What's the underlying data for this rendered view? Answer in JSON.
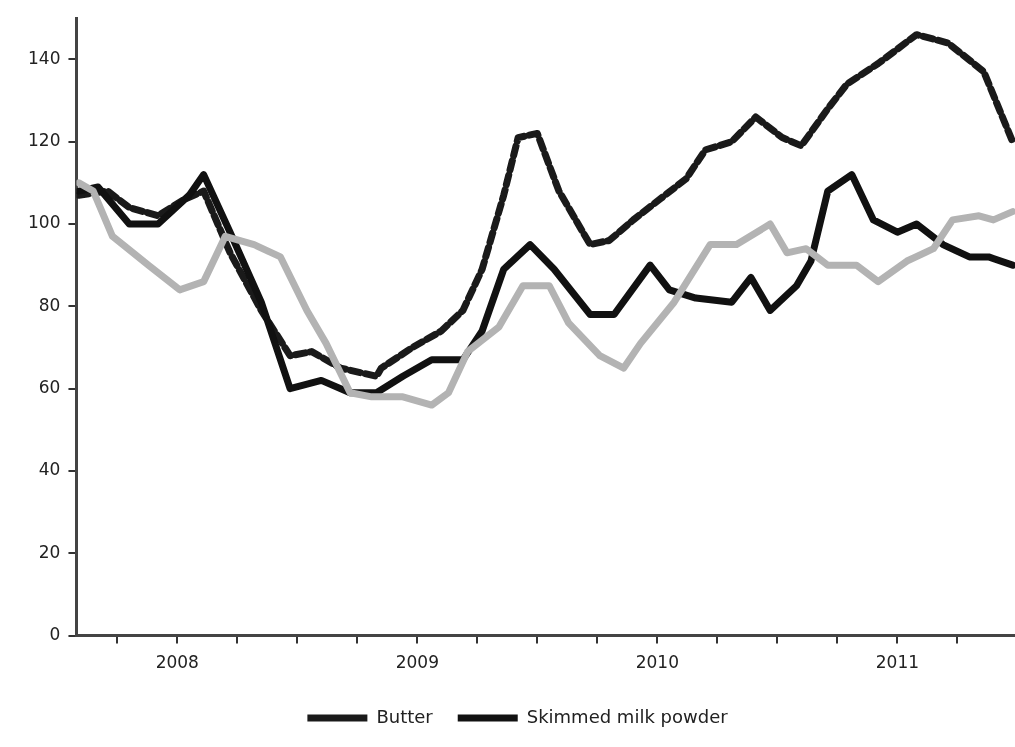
{
  "chart_data": {
    "type": "line",
    "legend": "bottom",
    "grid": false,
    "marker": "none",
    "xlim": [
      2008.08,
      2011.99
    ],
    "xticks": [
      {
        "value": 2008.25,
        "label": null
      },
      {
        "value": 2008.5,
        "label": "2008"
      },
      {
        "value": 2008.75,
        "label": null
      },
      {
        "value": 2009,
        "label": null
      },
      {
        "value": 2009.25,
        "label": null
      },
      {
        "value": 2009.5,
        "label": "2009"
      },
      {
        "value": 2009.75,
        "label": null
      },
      {
        "value": 2010,
        "label": null
      },
      {
        "value": 2010.25,
        "label": null
      },
      {
        "value": 2010.5,
        "label": "2010"
      },
      {
        "value": 2010.75,
        "label": null
      },
      {
        "value": 2011,
        "label": null
      },
      {
        "value": 2011.25,
        "label": null
      },
      {
        "value": 2011.5,
        "label": "2011"
      },
      {
        "value": 2011.75,
        "label": null
      }
    ],
    "ylim": [
      0,
      150
    ],
    "yticks": [
      0,
      20,
      40,
      60,
      80,
      100,
      120,
      140
    ],
    "series": [
      {
        "name": "Butter",
        "color": "#1a1a1a",
        "line_style": "dashed",
        "x": [
          2008.09,
          2008.21,
          2008.3,
          2008.42,
          2008.53,
          2008.61,
          2008.72,
          2008.85,
          2008.97,
          2009.06,
          2009.18,
          2009.33,
          2009.35,
          2009.48,
          2009.6,
          2009.69,
          2009.77,
          2009.86,
          2009.92,
          2010.0,
          2010.09,
          2010.22,
          2010.3,
          2010.4,
          2010.51,
          2010.62,
          2010.7,
          2010.81,
          2010.91,
          2011.02,
          2011.1,
          2011.21,
          2011.29,
          2011.42,
          2011.58,
          2011.71,
          2011.86,
          2011.98
        ],
        "values": [
          107,
          108,
          104,
          102,
          106,
          108,
          93,
          79,
          68,
          69,
          65,
          63,
          65,
          70,
          74,
          79,
          89,
          107,
          121,
          122,
          108,
          95,
          96,
          101,
          106,
          111,
          118,
          120,
          126,
          121,
          119,
          128,
          134,
          139,
          146,
          144,
          137,
          120
        ]
      },
      {
        "name": "Skimmed milk powder",
        "color": "#111111",
        "line_style": "solid",
        "x": [
          2008.09,
          2008.17,
          2008.3,
          2008.42,
          2008.55,
          2008.61,
          2008.72,
          2008.85,
          2008.97,
          2009.1,
          2009.22,
          2009.33,
          2009.44,
          2009.56,
          2009.69,
          2009.77,
          2009.86,
          2009.97,
          2010.07,
          2010.22,
          2010.32,
          2010.47,
          2010.55,
          2010.66,
          2010.81,
          2010.89,
          2010.97,
          2011.08,
          2011.14,
          2011.21,
          2011.31,
          2011.4,
          2011.5,
          2011.58,
          2011.69,
          2011.8,
          2011.88,
          2011.98
        ],
        "values": [
          108,
          109,
          100,
          100,
          107,
          112,
          98,
          81,
          60,
          62,
          59,
          59,
          63,
          67,
          67,
          74,
          89,
          95,
          89,
          78,
          78,
          90,
          84,
          82,
          81,
          87,
          79,
          85,
          91,
          108,
          112,
          101,
          98,
          100,
          95,
          92,
          92,
          90
        ]
      },
      {
        "color": "#b3b3b3",
        "line_style": "solid",
        "x": [
          2008.09,
          2008.15,
          2008.23,
          2008.38,
          2008.51,
          2008.61,
          2008.7,
          2008.82,
          2008.93,
          2009.04,
          2009.12,
          2009.22,
          2009.31,
          2009.44,
          2009.56,
          2009.63,
          2009.71,
          2009.84,
          2009.94,
          2010.05,
          2010.13,
          2010.26,
          2010.36,
          2010.43,
          2010.57,
          2010.72,
          2010.83,
          2010.97,
          2011.04,
          2011.12,
          2011.21,
          2011.33,
          2011.42,
          2011.54,
          2011.65,
          2011.73,
          2011.84,
          2011.9,
          2011.98
        ],
        "values": [
          110,
          108,
          97,
          90,
          84,
          86,
          97,
          95,
          92,
          79,
          71,
          59,
          58,
          58,
          56,
          59,
          69,
          75,
          85,
          85,
          76,
          68,
          65,
          71,
          81,
          95,
          95,
          100,
          93,
          94,
          90,
          90,
          86,
          91,
          94,
          101,
          102,
          101,
          103
        ]
      }
    ]
  }
}
